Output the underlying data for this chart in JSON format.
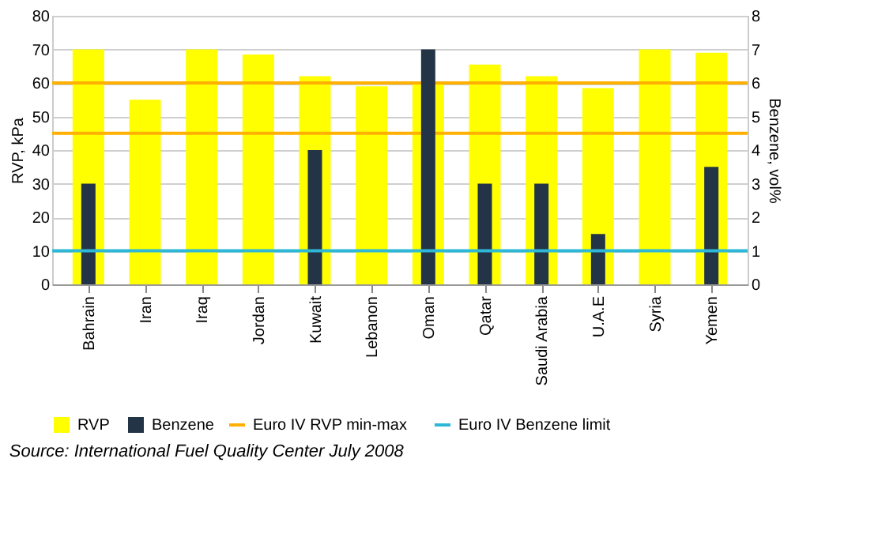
{
  "chart_data": {
    "type": "bar",
    "categories": [
      "Bahrain",
      "Iran",
      "Iraq",
      "Jordan",
      "Kuwait",
      "Lebanon",
      "Oman",
      "Qatar",
      "Saudi Arabia",
      "U.A.E",
      "Syria",
      "Yemen"
    ],
    "series": [
      {
        "name": "RVP",
        "color": "#ffff00",
        "values": [
          70,
          55,
          70,
          68.5,
          62,
          59,
          60,
          65.5,
          62,
          58.5,
          70,
          69
        ]
      },
      {
        "name": "Benzene",
        "color": "#243447",
        "axis": "y2",
        "values": [
          3,
          null,
          null,
          null,
          4,
          null,
          7,
          3,
          3,
          1.5,
          null,
          3.5
        ]
      }
    ],
    "ylabel": "RVP, kPa",
    "y2label": "Benzene, vol%",
    "ylim": [
      0,
      80
    ],
    "yticks": [
      0,
      10,
      20,
      30,
      40,
      50,
      60,
      70,
      80
    ],
    "y2lim": [
      0,
      8
    ],
    "y2ticks": [
      0,
      1,
      2,
      3,
      4,
      5,
      6,
      7,
      8
    ],
    "ref_lines": [
      {
        "axis": "y",
        "value": 60,
        "label": "Euro IV  RVP min-max",
        "color": "#ffb000"
      },
      {
        "axis": "y",
        "value": 45,
        "color": "#ffb000"
      },
      {
        "axis": "y2",
        "value": 1,
        "label": "Euro IV  Benzene limit",
        "color": "#2eb8d8"
      }
    ],
    "grid": "y",
    "legend": "bottom",
    "annotations": [
      "Source: International Fuel Quality Center July 2008"
    ]
  }
}
